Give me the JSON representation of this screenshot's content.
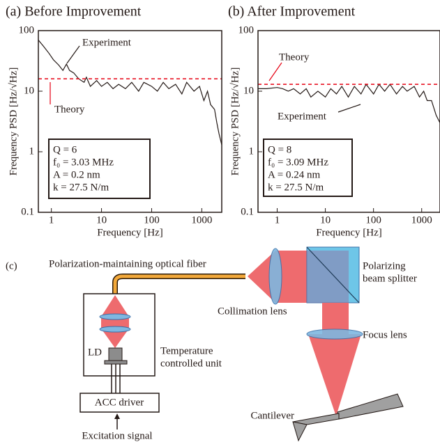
{
  "chart_data": [
    {
      "type": "line",
      "title": "(a) Before Improvement",
      "x_label": "Frequency [Hz]",
      "y_label": "Frequency PSD [Hz/√Hz]",
      "log_x": true,
      "log_y": true,
      "xlim": [
        0.55,
        2500
      ],
      "ylim": [
        0.1,
        100
      ],
      "xticks": [
        1,
        10,
        100,
        1000
      ],
      "yticks": [
        0.1,
        1,
        10,
        100
      ],
      "series": [
        {
          "name": "Experiment",
          "color": "#231815",
          "dashed": false,
          "x": [
            0.55,
            0.7,
            0.9,
            1.1,
            1.4,
            1.7,
            2,
            2.3,
            2.8,
            3.5,
            4.5,
            5,
            6,
            8,
            10,
            13,
            17,
            22,
            30,
            40,
            55,
            70,
            100,
            130,
            170,
            220,
            300,
            400,
            500,
            700,
            900,
            1100,
            1300,
            1500,
            1800,
            2000,
            2200,
            2500
          ],
          "values": [
            70,
            55,
            42,
            33,
            27,
            22,
            28,
            22,
            20,
            16,
            14,
            17,
            12,
            15,
            12,
            14,
            11,
            13,
            11,
            14,
            10,
            14,
            12,
            10,
            14,
            11,
            13,
            9,
            14,
            10,
            12,
            7,
            10,
            6,
            5,
            3,
            2,
            1.3
          ]
        },
        {
          "name": "Theory",
          "color": "#e60012",
          "dashed": true,
          "x": [
            0.55,
            2500
          ],
          "values": [
            16,
            16
          ]
        }
      ],
      "parameters": [
        "Q = 6",
        "f₀ = 3.03 MHz",
        "A = 0.2 nm",
        "k = 27.5 N/m"
      ]
    },
    {
      "type": "line",
      "title": "(b) After Improvement",
      "x_label": "Frequency [Hz]",
      "y_label": "Frequency PSD [Hz/√Hz]",
      "log_x": true,
      "log_y": true,
      "xlim": [
        0.4,
        2400
      ],
      "ylim": [
        0.1,
        100
      ],
      "xticks": [
        1,
        10,
        100,
        1000
      ],
      "yticks": [
        0.1,
        1,
        10,
        100
      ],
      "series": [
        {
          "name": "Experiment",
          "color": "#231815",
          "dashed": false,
          "x": [
            0.4,
            0.6,
            1,
            1.3,
            1.7,
            2.2,
            3,
            4,
            5,
            7,
            10,
            13,
            17,
            22,
            30,
            40,
            55,
            70,
            100,
            130,
            170,
            220,
            300,
            400,
            500,
            700,
            900,
            1100,
            1300,
            1600,
            2000,
            2400
          ],
          "values": [
            11,
            11,
            11.5,
            11,
            10,
            11,
            9,
            11,
            8,
            10,
            8,
            11,
            9,
            12,
            8,
            12,
            9,
            13,
            9,
            13,
            10,
            13,
            9,
            12,
            10,
            12,
            8,
            10,
            7,
            7,
            4,
            3
          ]
        },
        {
          "name": "Theory",
          "color": "#e60012",
          "dashed": true,
          "x": [
            0.4,
            2400
          ],
          "values": [
            13,
            13
          ]
        }
      ],
      "parameters": [
        "Q = 8",
        "f₀ = 3.09 MHz",
        "A =  0.24 nm",
        "k = 27.5 N/m"
      ]
    }
  ],
  "diagram": {
    "label": "(c)",
    "fiber": "Polarization-maintaining optical fiber",
    "collimation_lens": "Collimation lens",
    "beam_splitter": [
      "Polarizing",
      "beam splitter"
    ],
    "focus_lens": "Focus lens",
    "temperature_unit": [
      "Temperature",
      "controlled unit"
    ],
    "ld": "LD",
    "driver": "ACC driver",
    "cantilever": "Cantilever",
    "excitation": "Excitation signal"
  }
}
